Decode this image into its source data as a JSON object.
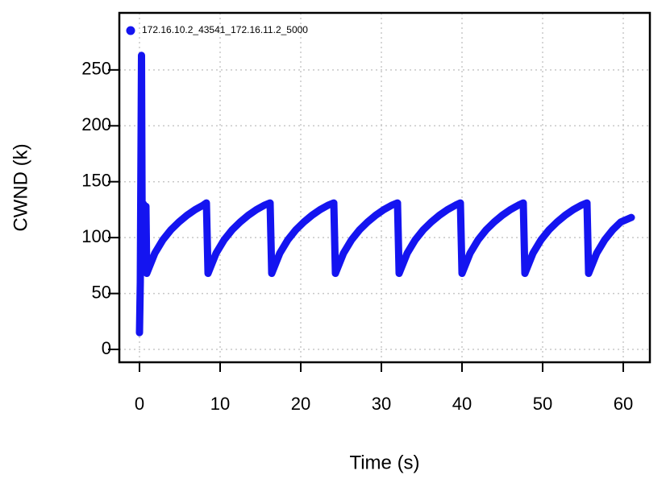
{
  "chart_data": {
    "type": "line",
    "xlabel": "Time (s)",
    "ylabel": "CWND (k)",
    "x": [
      0,
      0.1,
      0.25,
      0.35,
      0.5,
      0.6,
      0.8,
      0.9,
      1.9,
      2.9,
      3.9,
      4.9,
      5.9,
      6.9,
      7.9,
      8.3,
      8.5,
      9.5,
      10.5,
      11.5,
      12.5,
      13.5,
      14.5,
      15.5,
      16.2,
      16.4,
      17.4,
      18.4,
      19.4,
      20.4,
      21.4,
      22.4,
      23.4,
      24.1,
      24.3,
      25.3,
      26.3,
      27.3,
      28.3,
      29.3,
      30.3,
      31.3,
      32.0,
      32.2,
      33.2,
      34.2,
      35.2,
      36.2,
      37.2,
      38.2,
      39.2,
      39.8,
      40.0,
      41,
      42,
      43,
      44,
      45,
      46,
      47,
      47.6,
      47.8,
      48.8,
      49.8,
      50.8,
      51.8,
      52.8,
      53.8,
      54.8,
      55.5,
      55.7,
      56.7,
      57.7,
      58.7,
      59.7,
      61
    ],
    "series": [
      {
        "name": "172.16.10.2_43541_172.16.11.2_5000",
        "color": "#1414f0",
        "values": [
          15,
          60,
          263,
          70,
          130,
          75,
          128,
          68,
          86,
          98,
          107,
          114,
          120,
          125,
          129,
          131,
          68,
          86,
          98,
          107,
          114,
          120,
          125,
          129,
          131,
          68,
          86,
          98,
          107,
          114,
          120,
          125,
          129,
          131,
          68,
          86,
          98,
          107,
          114,
          120,
          125,
          129,
          131,
          68,
          86,
          98,
          107,
          114,
          120,
          125,
          129,
          131,
          68,
          86,
          98,
          107,
          114,
          120,
          125,
          129,
          131,
          68,
          86,
          98,
          107,
          114,
          120,
          125,
          129,
          131,
          68,
          86,
          98,
          107,
          114,
          118
        ]
      }
    ],
    "xlim": [
      -2.5,
      63.3
    ],
    "ylim": [
      -11.5,
      301
    ],
    "xticks": [
      0,
      10,
      20,
      30,
      40,
      50,
      60
    ],
    "yticks": [
      0,
      50,
      100,
      150,
      200,
      250
    ],
    "grid": true,
    "legend": "top-left"
  }
}
